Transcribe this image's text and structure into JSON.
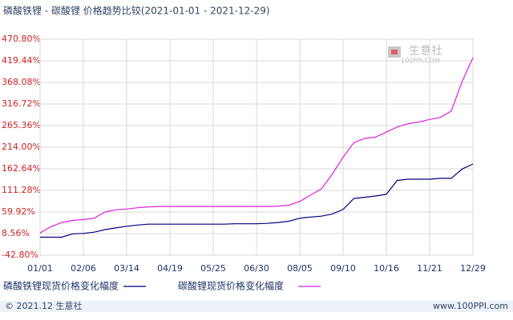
{
  "chart_data": {
    "type": "line",
    "title": "磷酸铁锂 - 碳酸锂 价格趋势比较(2021-01-01 - 2021-12-29)",
    "categories": [
      "01/01",
      null,
      null,
      null,
      "02/06",
      null,
      null,
      null,
      "03/14",
      null,
      null,
      null,
      "04/19",
      null,
      null,
      null,
      "05/25",
      null,
      null,
      null,
      "06/30",
      null,
      null,
      null,
      "08/05",
      null,
      null,
      null,
      "09/10",
      null,
      null,
      null,
      "10/16",
      null,
      null,
      null,
      "11/21",
      null,
      null,
      null,
      "12/29"
    ],
    "series": [
      {
        "name": "磷酸铁锂现货价格变化幅度",
        "color": "#000080",
        "values": [
          0,
          0,
          0,
          8,
          9,
          12,
          18,
          22,
          26,
          29,
          31,
          31,
          31,
          31,
          31,
          31,
          31,
          31,
          32,
          32,
          32,
          33,
          35,
          38,
          45,
          48,
          50,
          55,
          66,
          92,
          95,
          98,
          102,
          135,
          138,
          138,
          138,
          140,
          140,
          162,
          174
        ]
      },
      {
        "name": "碳酸锂现货价格变化幅度",
        "color": "#e020e0",
        "values": [
          10,
          25,
          35,
          40,
          42,
          45,
          60,
          65,
          67,
          70,
          72,
          73,
          73,
          73,
          73,
          73,
          73,
          73,
          73,
          73,
          73,
          73,
          74,
          76,
          85,
          100,
          115,
          150,
          190,
          225,
          235,
          238,
          250,
          262,
          270,
          274,
          280,
          285,
          300,
          370,
          427
        ]
      }
    ],
    "ylim": [
      -42.8,
      470.8
    ],
    "yticks": [
      {
        "value": -42.8,
        "label": "-42.80%"
      },
      {
        "value": 8.56,
        "label": "8.56%"
      },
      {
        "value": 59.92,
        "label": "59.92%"
      },
      {
        "value": 111.28,
        "label": "111.28%"
      },
      {
        "value": 162.64,
        "label": "162.64%"
      },
      {
        "value": 214,
        "label": "214.00%"
      },
      {
        "value": 265.36,
        "label": "265.36%"
      },
      {
        "value": 316.72,
        "label": "316.72%"
      },
      {
        "value": 368.08,
        "label": "368.08%"
      },
      {
        "value": 419.44,
        "label": "419.44%"
      },
      {
        "value": 470.8,
        "label": "470.80%"
      }
    ],
    "grid": true,
    "watermark": "生意社",
    "watermark_sub": "100PPI.COM",
    "footer_left": "© 2021.12 生意社",
    "footer_right": "www.100PPI.com"
  }
}
